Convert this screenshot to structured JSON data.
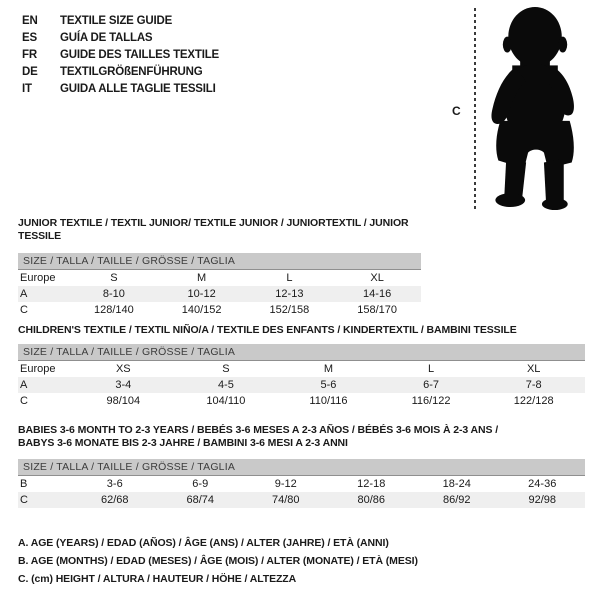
{
  "languages": [
    {
      "code": "EN",
      "title": "TEXTILE SIZE GUIDE"
    },
    {
      "code": "ES",
      "title": "GUÍA DE TALLAS"
    },
    {
      "code": "FR",
      "title": "GUIDE DES TAILLES TEXTILE"
    },
    {
      "code": "DE",
      "title": "TEXTILGRÖßENFÜHRUNG"
    },
    {
      "code": "IT",
      "title": "GUIDA ALLE TAGLIE TESSILI"
    }
  ],
  "figure": {
    "label": "C"
  },
  "sections": [
    {
      "title": "JUNIOR TEXTILE / TEXTIL JUNIOR/ TEXTILE JUNIOR / JUNIORTEXTIL / JUNIOR TESSILE",
      "size_bar": "SIZE / TALLA / TAILLE / GRÖSSE / TAGLIA",
      "header": [
        "Europe",
        "S",
        "M",
        "L",
        "XL"
      ],
      "rows": [
        {
          "label": "A",
          "values": [
            "8-10",
            "10-12",
            "12-13",
            "14-16"
          ],
          "shaded": true
        },
        {
          "label": "C",
          "values": [
            "128/140",
            "140/152",
            "152/158",
            "158/170"
          ],
          "shaded": false
        }
      ]
    },
    {
      "title": "CHILDREN'S TEXTILE / TEXTIL NIÑO/A / TEXTILE DES ENFANTS / KINDERTEXTIL / BAMBINI TESSILE",
      "size_bar": "SIZE / TALLA / TAILLE / GRÖSSE / TAGLIA",
      "header": [
        "Europe",
        "XS",
        "S",
        "M",
        "L",
        "XL"
      ],
      "rows": [
        {
          "label": "A",
          "values": [
            "3-4",
            "4-5",
            "5-6",
            "6-7",
            "7-8"
          ],
          "shaded": true
        },
        {
          "label": "C",
          "values": [
            "98/104",
            "104/110",
            "110/116",
            "116/122",
            "122/128"
          ],
          "shaded": false
        }
      ]
    },
    {
      "title": "BABIES 3-6 MONTH TO 2-3 YEARS / BEBÉS 3-6 MESES A 2-3 AÑOS / BÉBÉS 3-6 MOIS À 2-3 ANS /\nBABYS 3-6 MONATE BIS 2-3 JAHRE / BAMBINI 3-6 MESI A 2-3 ANNI",
      "size_bar": "SIZE / TALLA / TAILLE / GRÖSSE / TAGLIA",
      "header": null,
      "rows": [
        {
          "label": "B",
          "values": [
            "3-6",
            "6-9",
            "9-12",
            "12-18",
            "18-24",
            "24-36"
          ],
          "shaded": false
        },
        {
          "label": "C",
          "values": [
            "62/68",
            "68/74",
            "74/80",
            "80/86",
            "86/92",
            "92/98"
          ],
          "shaded": true
        }
      ]
    }
  ],
  "notes": [
    "A. AGE (YEARS) / EDAD (AÑOS) / ÂGE (ANS) / ALTER (JAHRE) / ETÀ (ANNI)",
    "B. AGE (MONTHS) / EDAD (MESES) / ÂGE (MOIS) / ALTER (MONATE) / ETÀ (MESI)",
    "C. (cm) HEIGHT / ALTURA / HAUTEUR / HÖHE / ALTEZZA"
  ],
  "colors": {
    "size_bar": "#c9c9c9",
    "shaded_row": "#efefef",
    "text": "#1a1a1a"
  }
}
